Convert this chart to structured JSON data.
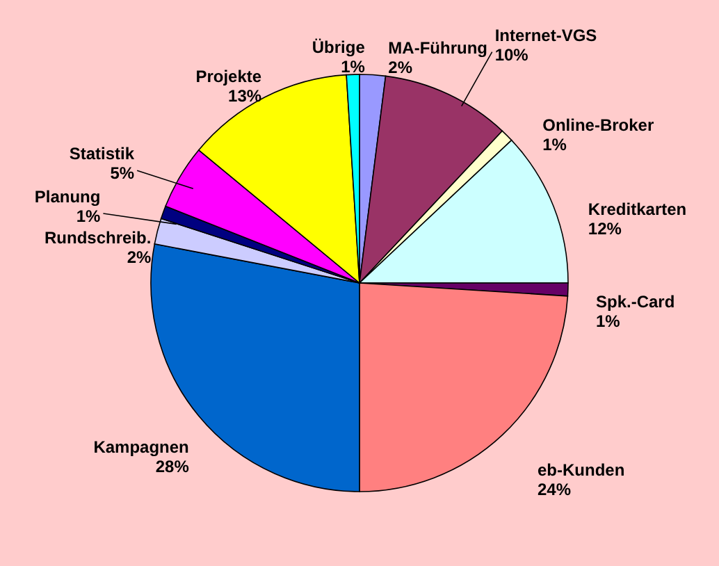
{
  "chart_data": {
    "type": "pie",
    "categories": [
      "MA-Führung",
      "Internet-VGS",
      "Online-Broker",
      "Kreditkarten",
      "Spk.-Card",
      "eb-Kunden",
      "Kampagnen",
      "Rundschreib.",
      "Planung",
      "Statistik",
      "Projekte",
      "Übrige"
    ],
    "values": [
      2,
      10,
      1,
      12,
      1,
      24,
      28,
      2,
      1,
      5,
      13,
      1
    ],
    "value_labels": [
      "2%",
      "10%",
      "1%",
      "12%",
      "1%",
      "24%",
      "28%",
      "2%",
      "1%",
      "5%",
      "13%",
      "1%"
    ],
    "colors": [
      "#9999ff",
      "#993366",
      "#ffffcc",
      "#ccffff",
      "#660066",
      "#ff8080",
      "#0066cc",
      "#ccccff",
      "#000080",
      "#ff00ff",
      "#ffff00",
      "#00ffff"
    ]
  }
}
